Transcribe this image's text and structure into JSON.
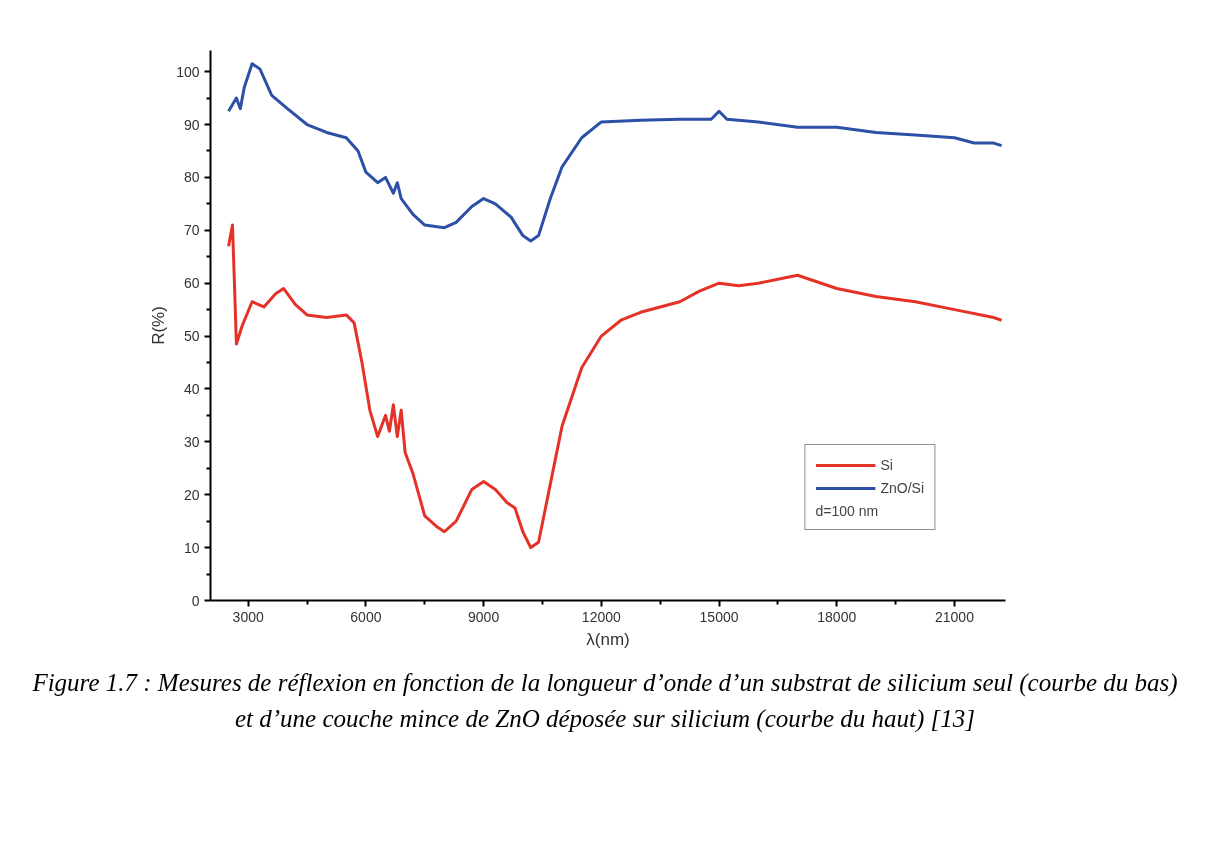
{
  "chart_data": {
    "type": "line",
    "xlabel": "λ(nm)",
    "ylabel": "R(%)",
    "legend_title": "d=100 nm",
    "legend": "bottom right",
    "grid": false,
    "marker": "none",
    "line_style": "solid",
    "xlim": [
      2040,
      22300
    ],
    "ylim": [
      0,
      104
    ],
    "xticks": [
      3000,
      6000,
      9000,
      12000,
      15000,
      18000,
      21000
    ],
    "yticks": [
      0,
      10,
      20,
      30,
      40,
      50,
      60,
      70,
      80,
      90,
      100
    ],
    "annotations": [
      "Figure 1.7 : Mesures de réflexion en fonction de la longueur d’onde d’un substrat de silicium seul (courbe du bas) et d’une couche mince de ZnO déposée sur silicium (courbe du haut) [13]"
    ],
    "series": [
      {
        "name": "Si",
        "color": "#e53228",
        "x": [
          2500,
          2600,
          2650,
          2700,
          2850,
          3100,
          3400,
          3700,
          3900,
          4200,
          4500,
          5000,
          5500,
          5700,
          5900,
          6100,
          6300,
          6400,
          6500,
          6600,
          6700,
          6800,
          6900,
          7000,
          7200,
          7500,
          7800,
          8000,
          8300,
          8700,
          9000,
          9300,
          9600,
          9800,
          10000,
          10200,
          10400,
          10700,
          11000,
          11500,
          12000,
          12500,
          13000,
          14000,
          14500,
          15000,
          15500,
          16000,
          17000,
          18000,
          19000,
          20000,
          21000,
          22000,
          22200
        ],
        "values": [
          67,
          71,
          60,
          48.5,
          52,
          56.5,
          55.5,
          58,
          59,
          56,
          54,
          53.5,
          54,
          52.5,
          45,
          36,
          31,
          33,
          35,
          32,
          37,
          31,
          36,
          28,
          24,
          16,
          14,
          13,
          15,
          21,
          22.5,
          21,
          18.5,
          17.5,
          13,
          10,
          11,
          22,
          33,
          44,
          50,
          53,
          54.5,
          56.5,
          58.5,
          60,
          59.5,
          60,
          61.5,
          59,
          57.5,
          56.5,
          55,
          53.5,
          53
        ]
      },
      {
        "name": "ZnO/Si",
        "color": "#2b50a6",
        "x": [
          2500,
          2700,
          2800,
          2900,
          3100,
          3300,
          3600,
          4000,
          4500,
          5000,
          5500,
          5800,
          6000,
          6300,
          6500,
          6700,
          6800,
          6900,
          7200,
          7500,
          8000,
          8300,
          8700,
          9000,
          9300,
          9700,
          10000,
          10200,
          10400,
          10700,
          11000,
          11500,
          12000,
          13000,
          14000,
          14800,
          15000,
          15200,
          16000,
          17000,
          18000,
          19000,
          20000,
          21000,
          21500,
          22000,
          22200
        ],
        "values": [
          92.5,
          95,
          93,
          97,
          101.5,
          100.5,
          95.5,
          93,
          90,
          88.5,
          87.5,
          85,
          81,
          79,
          80,
          77,
          79,
          76,
          73,
          71,
          70.5,
          71.5,
          74.5,
          76,
          75,
          72.5,
          69,
          68,
          69,
          76,
          82,
          87.5,
          90.5,
          90.8,
          91,
          91,
          92.5,
          91,
          90.5,
          89.5,
          89.5,
          88.5,
          88,
          87.5,
          86.5,
          86.5,
          86
        ]
      }
    ]
  }
}
